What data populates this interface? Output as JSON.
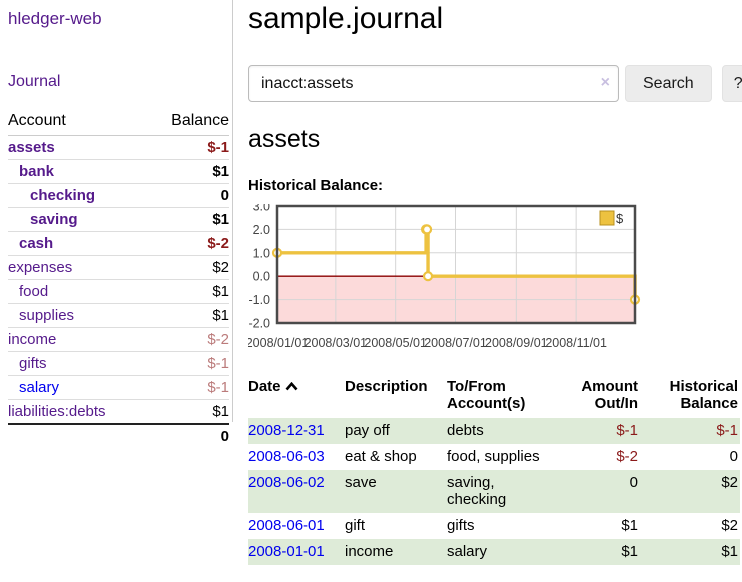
{
  "app": {
    "title": "hledger-web"
  },
  "sidebar": {
    "journal_link": "Journal",
    "accounts_table": {
      "headers": {
        "account": "Account",
        "balance": "Balance"
      },
      "rows": [
        {
          "name": "assets",
          "indent": 0,
          "bold": true,
          "balance": "$-1",
          "balance_style": "neg"
        },
        {
          "name": "bank",
          "indent": 1,
          "bold": true,
          "balance": "$1"
        },
        {
          "name": "checking",
          "indent": 2,
          "bold": true,
          "balance": "0"
        },
        {
          "name": "saving",
          "indent": 2,
          "bold": true,
          "balance": "$1"
        },
        {
          "name": "cash",
          "indent": 1,
          "bold": true,
          "balance": "$-2",
          "balance_style": "neg"
        },
        {
          "name": "expenses",
          "indent": 0,
          "bold": false,
          "balance": "$2"
        },
        {
          "name": "food",
          "indent": 1,
          "bold": false,
          "balance": "$1"
        },
        {
          "name": "supplies",
          "indent": 1,
          "bold": false,
          "balance": "$1"
        },
        {
          "name": "income",
          "indent": 0,
          "bold": false,
          "balance": "$-2",
          "balance_style": "negmuted"
        },
        {
          "name": "gifts",
          "indent": 1,
          "bold": false,
          "balance": "$-1",
          "balance_style": "negmuted"
        },
        {
          "name": "salary",
          "indent": 1,
          "bold": false,
          "link": "blue",
          "balance": "$-1",
          "balance_style": "negmuted"
        },
        {
          "name": "liabilities:debts",
          "indent": 0,
          "bold": false,
          "balance": "$1"
        }
      ],
      "total": "0"
    }
  },
  "main": {
    "title": "sample.journal",
    "search": {
      "value": "inacct:assets",
      "clear_icon": "×",
      "button_label": "Search",
      "help_label": "?"
    },
    "account_heading": "assets",
    "chart_heading": "Historical Balance:"
  },
  "chart_data": {
    "type": "line",
    "title": "Historical Balance:",
    "step": true,
    "series": [
      {
        "name": "$",
        "color": "#edc240",
        "points": [
          [
            "2008-01-01",
            1
          ],
          [
            "2008-06-01",
            2
          ],
          [
            "2008-06-02",
            2
          ],
          [
            "2008-06-03",
            0
          ],
          [
            "2008-12-31",
            -1
          ]
        ]
      }
    ],
    "x_range": [
      "2008-01-01",
      "2008-12-31"
    ],
    "ylim": [
      -2,
      3
    ],
    "x_ticks": [
      "2008/01/01",
      "2008/03/01",
      "2008/05/01",
      "2008/07/01",
      "2008/09/01",
      "2008/11/01"
    ],
    "y_ticks": [
      3.0,
      2.0,
      1.0,
      0.0,
      -1.0,
      -2.0
    ],
    "legend": {
      "label": "$",
      "position": "top-right"
    },
    "grid": true,
    "colors": {
      "line": "#edc240",
      "marker_fill": "#ffffff",
      "zero_line": "#8b0000",
      "negative_region": "#fcdada",
      "gridline": "#d5d5d5",
      "border": "#4a4a4a",
      "tick_text": "#444444",
      "legend_swatch_border": "#b8901f"
    }
  },
  "register": {
    "columns": {
      "date": "Date",
      "description": "Description",
      "accounts": "To/From Account(s)",
      "amount": "Amount Out/In",
      "balance": "Historical Balance"
    },
    "rows": [
      {
        "date": "2008-12-31",
        "description": "pay off",
        "accounts": "debts",
        "amount": "$-1",
        "amount_style": "neg",
        "balance": "$-1",
        "balance_style": "neg"
      },
      {
        "date": "2008-06-03",
        "description": "eat & shop",
        "accounts": "food, supplies",
        "amount": "$-2",
        "amount_style": "neg",
        "balance": "0"
      },
      {
        "date": "2008-06-02",
        "description": "save",
        "accounts": "saving, checking",
        "amount": "0",
        "balance": "$2"
      },
      {
        "date": "2008-06-01",
        "description": "gift",
        "accounts": "gifts",
        "amount": "$1",
        "balance": "$2"
      },
      {
        "date": "2008-01-01",
        "description": "income",
        "accounts": "salary",
        "amount": "$1",
        "balance": "$1"
      }
    ]
  }
}
